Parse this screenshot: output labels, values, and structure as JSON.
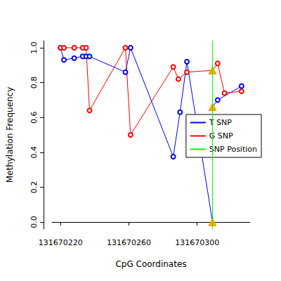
{
  "chart_data": {
    "type": "line",
    "x_label": "CpG Coordinates",
    "y_label": "Methylation Frequency",
    "xlim": [
      131670215,
      131670331
    ],
    "xticks": [
      131670220,
      131670260,
      131670300
    ],
    "ylim": [
      -0.04,
      1.04
    ],
    "yticks": [
      {
        "value": 0,
        "label": "0.0"
      },
      {
        "value": 0.2,
        "label": "0.2"
      },
      {
        "value": 0.4,
        "label": "0.4"
      },
      {
        "value": 0.6,
        "label": "0.6"
      },
      {
        "value": 0.8,
        "label": "0.8"
      },
      {
        "value": 1,
        "label": "1.0"
      }
    ],
    "grid": false,
    "legend": "right",
    "marker": "circle",
    "series": [
      {
        "name": "T SNP",
        "color": "#0000ff",
        "x": [
          131670220,
          131670222,
          131670228,
          131670233,
          131670235,
          131670237,
          131670258,
          131670261,
          131670286,
          131670290,
          131670294,
          131670309,
          131670309,
          131670312,
          131670326
        ],
        "values": [
          1.0,
          0.93,
          0.94,
          0.95,
          0.95,
          0.95,
          0.86,
          1.0,
          0.375,
          0.63,
          0.92,
          0.0,
          0.66,
          0.7,
          0.78
        ]
      },
      {
        "name": "G SNP",
        "color": "#ff0000",
        "x": [
          131670220,
          131670222,
          131670228,
          131670233,
          131670235,
          131670237,
          131670258,
          131670261,
          131670286,
          131670289,
          131670294,
          131670309,
          131670312,
          131670316,
          131670326
        ],
        "values": [
          1.0,
          1.0,
          1.0,
          1.0,
          1.0,
          0.64,
          1.0,
          0.5,
          0.89,
          0.82,
          0.86,
          0.87,
          0.91,
          0.74,
          0.75
        ]
      },
      {
        "name": "SNP Position",
        "color": "#00ff00",
        "type": "vline",
        "x": [
          131670309
        ]
      }
    ]
  }
}
